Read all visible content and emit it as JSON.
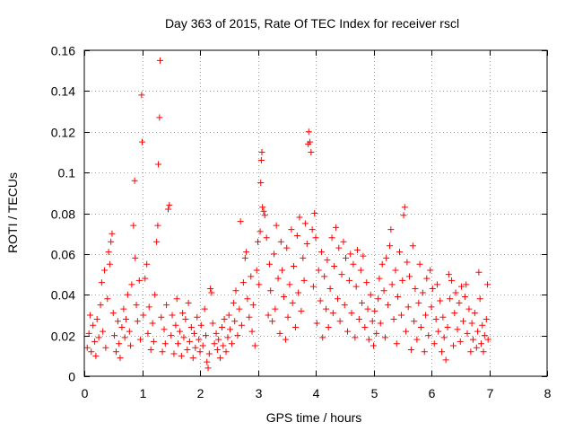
{
  "chart_data": {
    "type": "scatter",
    "title": "Day 363 of 2015, Rate Of TEC Index for receiver rscl",
    "xlabel": "GPS time / hours",
    "ylabel": "ROTI / TECUs",
    "xlim": [
      0,
      8
    ],
    "ylim": [
      0,
      0.16
    ],
    "xticks": [
      0,
      1,
      2,
      3,
      4,
      5,
      6,
      7,
      8
    ],
    "yticks": [
      0,
      0.02,
      0.04,
      0.06,
      0.08,
      0.1,
      0.12,
      0.14,
      0.16
    ],
    "xtick_labels": [
      "0",
      "1",
      "2",
      "3",
      "4",
      "5",
      "6",
      "7",
      "8"
    ],
    "ytick_labels": [
      "0",
      "0.02",
      "0.04",
      "0.06",
      "0.08",
      "0.1",
      "0.12",
      "0.14",
      "0.16"
    ],
    "grid": true,
    "marker": "+",
    "color": "#ff0000",
    "series": [
      {
        "name": "rscl",
        "points": [
          [
            0.05,
            0.014
          ],
          [
            0.08,
            0.021
          ],
          [
            0.1,
            0.03
          ],
          [
            0.12,
            0.012
          ],
          [
            0.15,
            0.025
          ],
          [
            0.18,
            0.017
          ],
          [
            0.2,
            0.01
          ],
          [
            0.22,
            0.028
          ],
          [
            0.25,
            0.019
          ],
          [
            0.28,
            0.035
          ],
          [
            0.3,
            0.046
          ],
          [
            0.32,
            0.022
          ],
          [
            0.35,
            0.052
          ],
          [
            0.37,
            0.014
          ],
          [
            0.4,
            0.038
          ],
          [
            0.42,
            0.061
          ],
          [
            0.44,
            0.055
          ],
          [
            0.46,
            0.066
          ],
          [
            0.48,
            0.07
          ],
          [
            0.5,
            0.031
          ],
          [
            0.52,
            0.02
          ],
          [
            0.55,
            0.012
          ],
          [
            0.58,
            0.027
          ],
          [
            0.6,
            0.016
          ],
          [
            0.62,
            0.009
          ],
          [
            0.65,
            0.024
          ],
          [
            0.68,
            0.033
          ],
          [
            0.7,
            0.019
          ],
          [
            0.72,
            0.028
          ],
          [
            0.75,
            0.04
          ],
          [
            0.78,
            0.022
          ],
          [
            0.8,
            0.015
          ],
          [
            0.82,
            0.045
          ],
          [
            0.85,
            0.074
          ],
          [
            0.87,
            0.096
          ],
          [
            0.88,
            0.058
          ],
          [
            0.9,
            0.035
          ],
          [
            0.92,
            0.027
          ],
          [
            0.95,
            0.047
          ],
          [
            0.97,
            0.018
          ],
          [
            0.99,
            0.138
          ],
          [
            1.0,
            0.115
          ],
          [
            1.02,
            0.03
          ],
          [
            1.05,
            0.048
          ],
          [
            1.08,
            0.055
          ],
          [
            1.1,
            0.021
          ],
          [
            1.12,
            0.034
          ],
          [
            1.15,
            0.013
          ],
          [
            1.18,
            0.026
          ],
          [
            1.2,
            0.017
          ],
          [
            1.22,
            0.04
          ],
          [
            1.25,
            0.066
          ],
          [
            1.27,
            0.074
          ],
          [
            1.28,
            0.104
          ],
          [
            1.3,
            0.127
          ],
          [
            1.31,
            0.155
          ],
          [
            1.33,
            0.029
          ],
          [
            1.35,
            0.012
          ],
          [
            1.38,
            0.023
          ],
          [
            1.4,
            0.016
          ],
          [
            1.42,
            0.035
          ],
          [
            1.45,
            0.082
          ],
          [
            1.47,
            0.084
          ],
          [
            1.5,
            0.02
          ],
          [
            1.52,
            0.03
          ],
          [
            1.55,
            0.011
          ],
          [
            1.58,
            0.025
          ],
          [
            1.6,
            0.038
          ],
          [
            1.62,
            0.016
          ],
          [
            1.65,
            0.022
          ],
          [
            1.68,
            0.01
          ],
          [
            1.7,
            0.031
          ],
          [
            1.72,
            0.019
          ],
          [
            1.75,
            0.028
          ],
          [
            1.78,
            0.013
          ],
          [
            1.8,
            0.036
          ],
          [
            1.82,
            0.017
          ],
          [
            1.85,
            0.024
          ],
          [
            1.88,
            0.009
          ],
          [
            1.9,
            0.021
          ],
          [
            1.92,
            0.014
          ],
          [
            1.95,
            0.029
          ],
          [
            1.98,
            0.018
          ],
          [
            2.0,
            0.012
          ],
          [
            2.02,
            0.025
          ],
          [
            2.05,
            0.015
          ],
          [
            2.08,
            0.033
          ],
          [
            2.1,
            0.02
          ],
          [
            2.12,
            0.007
          ],
          [
            2.14,
            0.004
          ],
          [
            2.16,
            0.011
          ],
          [
            2.18,
            0.043
          ],
          [
            2.2,
            0.041
          ],
          [
            2.22,
            0.026
          ],
          [
            2.25,
            0.016
          ],
          [
            2.28,
            0.021
          ],
          [
            2.3,
            0.013
          ],
          [
            2.32,
            0.018
          ],
          [
            2.35,
            0.009
          ],
          [
            2.38,
            0.024
          ],
          [
            2.4,
            0.015
          ],
          [
            2.42,
            0.028
          ],
          [
            2.45,
            0.012
          ],
          [
            2.48,
            0.019
          ],
          [
            2.5,
            0.03
          ],
          [
            2.52,
            0.023
          ],
          [
            2.55,
            0.016
          ],
          [
            2.58,
            0.036
          ],
          [
            2.6,
            0.027
          ],
          [
            2.62,
            0.042
          ],
          [
            2.65,
            0.02
          ],
          [
            2.68,
            0.033
          ],
          [
            2.7,
            0.076
          ],
          [
            2.72,
            0.025
          ],
          [
            2.75,
            0.046
          ],
          [
            2.78,
            0.058
          ],
          [
            2.8,
            0.061
          ],
          [
            2.82,
            0.038
          ],
          [
            2.85,
            0.029
          ],
          [
            2.88,
            0.049
          ],
          [
            2.9,
            0.022
          ],
          [
            2.92,
            0.035
          ],
          [
            2.95,
            0.015
          ],
          [
            2.98,
            0.052
          ],
          [
            3.0,
            0.066
          ],
          [
            3.02,
            0.045
          ],
          [
            3.04,
            0.071
          ],
          [
            3.05,
            0.095
          ],
          [
            3.06,
            0.106
          ],
          [
            3.07,
            0.11
          ],
          [
            3.08,
            0.083
          ],
          [
            3.1,
            0.081
          ],
          [
            3.12,
            0.079
          ],
          [
            3.15,
            0.068
          ],
          [
            3.18,
            0.03
          ],
          [
            3.2,
            0.055
          ],
          [
            3.22,
            0.042
          ],
          [
            3.25,
            0.027
          ],
          [
            3.28,
            0.06
          ],
          [
            3.3,
            0.033
          ],
          [
            3.32,
            0.074
          ],
          [
            3.35,
            0.048
          ],
          [
            3.38,
            0.021
          ],
          [
            3.4,
            0.066
          ],
          [
            3.42,
            0.052
          ],
          [
            3.45,
            0.039
          ],
          [
            3.48,
            0.018
          ],
          [
            3.5,
            0.063
          ],
          [
            3.52,
            0.029
          ],
          [
            3.55,
            0.045
          ],
          [
            3.58,
            0.072
          ],
          [
            3.6,
            0.036
          ],
          [
            3.62,
            0.054
          ],
          [
            3.65,
            0.024
          ],
          [
            3.68,
            0.069
          ],
          [
            3.7,
            0.041
          ],
          [
            3.72,
            0.078
          ],
          [
            3.75,
            0.032
          ],
          [
            3.78,
            0.058
          ],
          [
            3.8,
            0.047
          ],
          [
            3.82,
            0.075
          ],
          [
            3.85,
            0.065
          ],
          [
            3.87,
            0.114
          ],
          [
            3.88,
            0.12
          ],
          [
            3.9,
            0.115
          ],
          [
            3.92,
            0.11
          ],
          [
            3.94,
            0.072
          ],
          [
            3.96,
            0.044
          ],
          [
            3.98,
            0.08
          ],
          [
            4.0,
            0.068
          ],
          [
            4.02,
            0.026
          ],
          [
            4.05,
            0.052
          ],
          [
            4.08,
            0.037
          ],
          [
            4.1,
            0.061
          ],
          [
            4.12,
            0.019
          ],
          [
            4.15,
            0.049
          ],
          [
            4.18,
            0.033
          ],
          [
            4.2,
            0.057
          ],
          [
            4.22,
            0.024
          ],
          [
            4.25,
            0.043
          ],
          [
            4.28,
            0.068
          ],
          [
            4.3,
            0.031
          ],
          [
            4.32,
            0.054
          ],
          [
            4.35,
            0.073
          ],
          [
            4.38,
            0.038
          ],
          [
            4.4,
            0.063
          ],
          [
            4.42,
            0.027
          ],
          [
            4.45,
            0.05
          ],
          [
            4.48,
            0.066
          ],
          [
            4.5,
            0.035
          ],
          [
            4.52,
            0.058
          ],
          [
            4.55,
            0.022
          ],
          [
            4.58,
            0.047
          ],
          [
            4.6,
            0.06
          ],
          [
            4.62,
            0.031
          ],
          [
            4.65,
            0.055
          ],
          [
            4.68,
            0.019
          ],
          [
            4.7,
            0.044
          ],
          [
            4.72,
            0.062
          ],
          [
            4.75,
            0.028
          ],
          [
            4.78,
            0.052
          ],
          [
            4.8,
            0.036
          ],
          [
            4.82,
            0.059
          ],
          [
            4.85,
            0.024
          ],
          [
            4.88,
            0.046
          ],
          [
            4.9,
            0.033
          ],
          [
            4.92,
            0.018
          ],
          [
            4.95,
            0.04
          ],
          [
            4.98,
            0.027
          ],
          [
            5.0,
            0.015
          ],
          [
            5.02,
            0.032
          ],
          [
            5.05,
            0.021
          ],
          [
            5.08,
            0.038
          ],
          [
            5.1,
            0.048
          ],
          [
            5.12,
            0.026
          ],
          [
            5.15,
            0.055
          ],
          [
            5.18,
            0.042
          ],
          [
            5.2,
            0.019
          ],
          [
            5.22,
            0.058
          ],
          [
            5.25,
            0.035
          ],
          [
            5.28,
            0.064
          ],
          [
            5.3,
            0.072
          ],
          [
            5.32,
            0.045
          ],
          [
            5.35,
            0.028
          ],
          [
            5.38,
            0.052
          ],
          [
            5.4,
            0.016
          ],
          [
            5.42,
            0.039
          ],
          [
            5.45,
            0.061
          ],
          [
            5.48,
            0.03
          ],
          [
            5.5,
            0.047
          ],
          [
            5.52,
            0.079
          ],
          [
            5.54,
            0.083
          ],
          [
            5.56,
            0.022
          ],
          [
            5.58,
            0.056
          ],
          [
            5.6,
            0.034
          ],
          [
            5.62,
            0.049
          ],
          [
            5.65,
            0.013
          ],
          [
            5.68,
            0.064
          ],
          [
            5.7,
            0.027
          ],
          [
            5.72,
            0.043
          ],
          [
            5.75,
            0.018
          ],
          [
            5.78,
            0.036
          ],
          [
            5.8,
            0.055
          ],
          [
            5.82,
            0.024
          ],
          [
            5.85,
            0.041
          ],
          [
            5.88,
            0.012
          ],
          [
            5.9,
            0.03
          ],
          [
            5.92,
            0.048
          ],
          [
            5.95,
            0.02
          ],
          [
            5.98,
            0.052
          ],
          [
            6.0,
            0.034
          ],
          [
            6.02,
            0.043
          ],
          [
            6.05,
            0.016
          ],
          [
            6.08,
            0.028
          ],
          [
            6.1,
            0.045
          ],
          [
            6.12,
            0.022
          ],
          [
            6.15,
            0.037
          ],
          [
            6.18,
            0.012
          ],
          [
            6.2,
            0.029
          ],
          [
            6.22,
            0.019
          ],
          [
            6.25,
            0.008
          ],
          [
            6.28,
            0.024
          ],
          [
            6.3,
            0.05
          ],
          [
            6.32,
            0.038
          ],
          [
            6.35,
            0.047
          ],
          [
            6.38,
            0.015
          ],
          [
            6.4,
            0.031
          ],
          [
            6.42,
            0.041
          ],
          [
            6.45,
            0.023
          ],
          [
            6.48,
            0.036
          ],
          [
            6.5,
            0.017
          ],
          [
            6.52,
            0.044
          ],
          [
            6.55,
            0.027
          ],
          [
            6.58,
            0.039
          ],
          [
            6.6,
            0.045
          ],
          [
            6.62,
            0.021
          ],
          [
            6.65,
            0.033
          ],
          [
            6.68,
            0.012
          ],
          [
            6.7,
            0.026
          ],
          [
            6.72,
            0.018
          ],
          [
            6.75,
            0.031
          ],
          [
            6.78,
            0.014
          ],
          [
            6.8,
            0.022
          ],
          [
            6.82,
            0.051
          ],
          [
            6.84,
            0.038
          ],
          [
            6.86,
            0.016
          ],
          [
            6.88,
            0.025
          ],
          [
            6.9,
            0.012
          ],
          [
            6.92,
            0.02
          ],
          [
            6.95,
            0.028
          ],
          [
            6.97,
            0.045
          ],
          [
            6.98,
            0.018
          ]
        ]
      }
    ]
  }
}
